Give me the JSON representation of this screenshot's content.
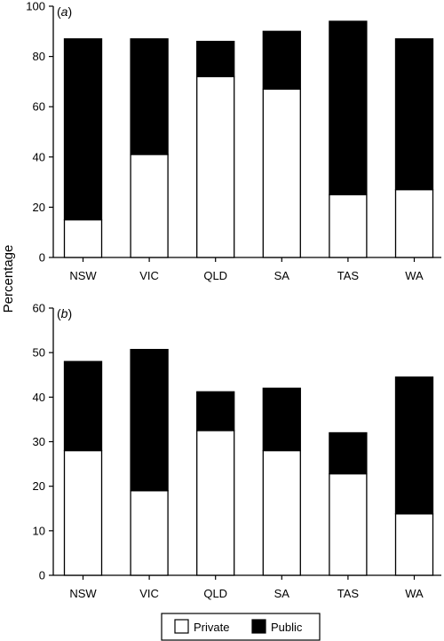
{
  "ylabel": "Percentage",
  "legend": {
    "placement": "bottom-center",
    "items": [
      {
        "label": "Private",
        "color": "#ffffff"
      },
      {
        "label": "Public",
        "color": "#000000"
      }
    ]
  },
  "chart_data": [
    {
      "type": "bar",
      "stacked": true,
      "panel": "(a)",
      "panel_letter": "a",
      "categories": [
        "NSW",
        "VIC",
        "QLD",
        "SA",
        "TAS",
        "WA"
      ],
      "ylim": [
        0,
        100
      ],
      "yticks": [
        0,
        20,
        40,
        60,
        80,
        100
      ],
      "series": [
        {
          "name": "Private",
          "color": "#ffffff",
          "values": [
            15,
            41,
            72,
            67,
            25,
            27
          ]
        },
        {
          "name": "Public",
          "color": "#000000",
          "values": [
            72,
            46,
            14,
            23,
            69,
            60
          ]
        }
      ]
    },
    {
      "type": "bar",
      "stacked": true,
      "panel": "(b)",
      "panel_letter": "b",
      "categories": [
        "NSW",
        "VIC",
        "QLD",
        "SA",
        "TAS",
        "WA"
      ],
      "ylim": [
        0,
        60
      ],
      "yticks": [
        0,
        10,
        20,
        30,
        40,
        50,
        60
      ],
      "series": [
        {
          "name": "Private",
          "color": "#ffffff",
          "values": [
            28,
            19,
            32.5,
            28,
            22.8,
            13.8
          ]
        },
        {
          "name": "Public",
          "color": "#000000",
          "values": [
            20,
            31.7,
            8.7,
            14,
            9.2,
            30.7
          ]
        }
      ]
    }
  ]
}
